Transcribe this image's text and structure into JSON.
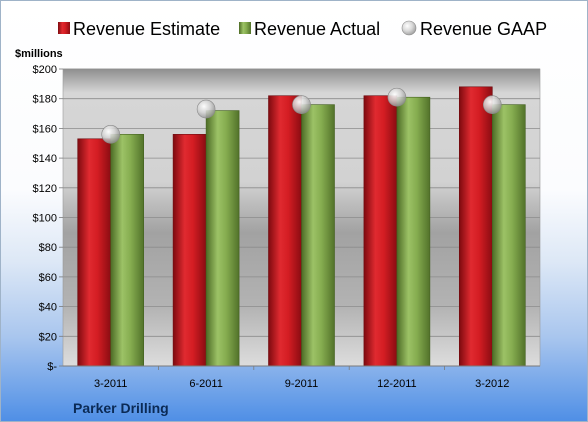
{
  "chart_data": {
    "type": "bar",
    "categories": [
      "3-2011",
      "6-2011",
      "9-2011",
      "12-2011",
      "3-2012"
    ],
    "series": [
      {
        "name": "Revenue Estimate",
        "kind": "bar",
        "color": "#c8141c",
        "values": [
          153,
          156,
          182,
          182,
          188
        ]
      },
      {
        "name": "Revenue Actual",
        "kind": "bar",
        "color": "#7aa045",
        "values": [
          156,
          172,
          176,
          181,
          176
        ]
      },
      {
        "name": "Revenue GAAP",
        "kind": "marker",
        "color": "#c8c8c8",
        "values": [
          156,
          173,
          176,
          181,
          176
        ]
      }
    ],
    "ylabel": "$millions",
    "ylim": [
      0,
      200
    ],
    "yticks": [
      0,
      20,
      40,
      60,
      80,
      100,
      120,
      140,
      160,
      180,
      200
    ],
    "ytick_labels": [
      "$-",
      "$20",
      "$40",
      "$60",
      "$80",
      "$100",
      "$120",
      "$140",
      "$160",
      "$180",
      "$200"
    ],
    "grid": true,
    "legend": "top",
    "company": "Parker Drilling"
  }
}
